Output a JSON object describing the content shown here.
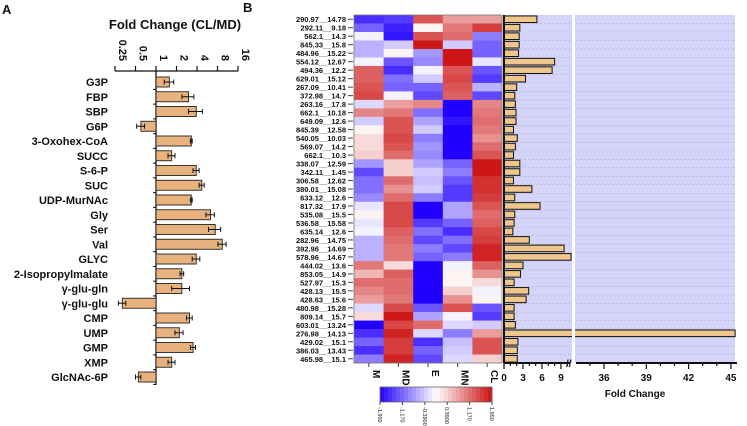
{
  "chart_data": [
    {
      "panel": "A",
      "type": "bar",
      "orientation": "horizontal",
      "title": "Fold Change (CL/MD)",
      "xscale": "log2",
      "xlim": [
        0.25,
        16
      ],
      "xticks": [
        "0.25",
        "0.5",
        "1",
        "2",
        "4",
        "8",
        "16"
      ],
      "categories": [
        "G3P",
        "FBP",
        "SBP",
        "G6P",
        "3-Oxohex-CoA",
        "SUCC",
        "S-6-P",
        "SUC",
        "UDP-MurNAc",
        "Gly",
        "Ser",
        "Val",
        "GLYC",
        "2-Isopropylmalate",
        "γ-glu-gln",
        "γ-glu-glu",
        "CMP",
        "UMP",
        "GMP",
        "XMP",
        "GlcNAc-6P"
      ],
      "values": [
        1.57,
        3.0,
        3.9,
        0.6,
        3.3,
        1.7,
        3.9,
        4.7,
        3.3,
        6.3,
        7.4,
        9.4,
        3.9,
        2.4,
        2.4,
        0.32,
        3.1,
        2.2,
        3.5,
        1.7,
        0.55
      ],
      "errors": [
        0.25,
        0.6,
        0.9,
        0.08,
        0.1,
        0.2,
        0.4,
        0.4,
        0.1,
        0.9,
        1.5,
        1.3,
        0.5,
        0.15,
        0.7,
        0.04,
        0.3,
        0.3,
        0.3,
        0.2,
        0.05
      ],
      "bar_color": "#e8b27e"
    },
    {
      "panel": "B",
      "type": "heatmap",
      "columns": [
        "M",
        "MD",
        "E",
        "MN",
        "CL"
      ],
      "rows": [
        "290.97__14.78",
        "292.11__9.18",
        "562.1__14.3",
        "845.33__15.8",
        "484.96__15.22",
        "554.12__12.67",
        "494.36__12.2",
        "629.01__15.12",
        "267.09__10.41",
        "372.98__14.7",
        "263.16__17.8",
        "662.1__10.18",
        "649.09__12.6",
        "845.39__12.58",
        "540.05__10.03",
        "569.07__14.2",
        "662.1__10.3",
        "338.07__12.59",
        "342.11__1.45",
        "306.58__12.62",
        "380.01__15.08",
        "633.12__12.6",
        "817.32__17.9",
        "535.08__15.5",
        "536.58__15.58",
        "635.14__12.6",
        "282.96__14.75",
        "392.96__14.69",
        "578.96__14.67",
        "444.02__13.6",
        "853.05__14.9",
        "527.97__15.3",
        "428.13__15.5",
        "428.63__15.6",
        "480.98__15.28",
        "809.14__15.7",
        "603.01__13.24",
        "276.98__14.13",
        "429.02__15.1",
        "386.03__13.43",
        "465.98__15.1"
      ],
      "values": [
        [
          -1.6,
          -1.5,
          1.4,
          0.8,
          0.8
        ],
        [
          -1.2,
          -1.7,
          0.1,
          1.1,
          1.6
        ],
        [
          -0.1,
          -1.8,
          1.4,
          1.2,
          -1.0
        ],
        [
          -0.6,
          -0.4,
          1.9,
          -0.4,
          -1.2
        ],
        [
          -0.6,
          0.1,
          -0.8,
          1.9,
          -1.2
        ],
        [
          -0.1,
          -1.3,
          -0.9,
          1.9,
          -0.2
        ],
        [
          1.3,
          -1.6,
          -0.1,
          1.4,
          -1.3
        ],
        [
          1.3,
          -1.1,
          -0.4,
          1.5,
          -1.5
        ],
        [
          1.4,
          -1.2,
          -1.2,
          1.4,
          -0.6
        ],
        [
          1.5,
          -0.1,
          -1.4,
          1.3,
          -1.4
        ],
        [
          -0.3,
          0.8,
          1.0,
          -1.95,
          1.0
        ],
        [
          1.0,
          1.1,
          -1.1,
          -1.95,
          1.1
        ],
        [
          -0.4,
          1.4,
          -0.7,
          -1.8,
          1.2
        ],
        [
          0.1,
          1.4,
          -0.4,
          -1.95,
          1.1
        ],
        [
          0.3,
          1.5,
          -1.0,
          -1.95,
          0.9
        ],
        [
          0.3,
          1.4,
          -0.8,
          -1.95,
          1.2
        ],
        [
          0.4,
          1.2,
          -0.9,
          -1.95,
          1.4
        ],
        [
          -0.8,
          0.4,
          -0.7,
          -1.2,
          1.9
        ],
        [
          -1.4,
          0.4,
          -0.4,
          -1.0,
          1.9
        ],
        [
          -1.1,
          1.2,
          -0.5,
          -1.3,
          1.7
        ],
        [
          -1.1,
          0.9,
          -0.4,
          -1.5,
          1.7
        ],
        [
          -0.9,
          1.2,
          -1.0,
          -1.5,
          1.6
        ],
        [
          -0.2,
          1.5,
          -1.95,
          -0.7,
          1.4
        ],
        [
          0.1,
          1.5,
          -1.95,
          -0.7,
          1.2
        ],
        [
          -0.2,
          1.5,
          -1.5,
          -1.2,
          1.3
        ],
        [
          -0.1,
          1.3,
          -1.1,
          -1.6,
          1.5
        ],
        [
          -0.6,
          1.2,
          -1.4,
          -1.1,
          1.6
        ],
        [
          -0.6,
          1.1,
          -1.0,
          -1.4,
          1.8
        ],
        [
          -0.6,
          1.1,
          -1.2,
          -1.0,
          1.8
        ],
        [
          1.1,
          0.3,
          -1.95,
          -0.1,
          1.3
        ],
        [
          0.6,
          1.3,
          -1.95,
          0.1,
          0.9
        ],
        [
          1.2,
          1.2,
          -1.95,
          0.1,
          0.3
        ],
        [
          1.0,
          1.2,
          -1.95,
          0.4,
          -0.1
        ],
        [
          0.8,
          1.1,
          -1.95,
          0.9,
          0.1
        ],
        [
          -0.3,
          1.5,
          -1.3,
          1.4,
          -1.3
        ],
        [
          0.3,
          1.9,
          -0.7,
          -0.1,
          -1.5
        ],
        [
          -1.95,
          1.5,
          1.2,
          -0.3,
          -0.4
        ],
        [
          -1.6,
          1.8,
          -0.3,
          -1.0,
          0.8
        ],
        [
          -1.2,
          1.6,
          -1.6,
          -0.5,
          1.4
        ],
        [
          -1.6,
          1.6,
          -1.2,
          -0.4,
          1.4
        ],
        [
          -1.0,
          1.8,
          -1.4,
          -0.3,
          0.4
        ]
      ],
      "colorbar": {
        "range": [
          -1.95,
          1.95
        ],
        "ticks": [
          "-1.950",
          "-1.170",
          "-0.3900",
          "0.3900",
          "1.170",
          "1.950"
        ],
        "low_color": "#2200ff",
        "mid_color": "#ffffff",
        "high_color": "#cc1111"
      }
    },
    {
      "panel": "B-bars",
      "type": "bar",
      "orientation": "horizontal",
      "xlabel": "Fold Change",
      "axis_break": [
        10.7,
        34.5
      ],
      "xticks_low": [
        "0",
        "3",
        "6",
        "9"
      ],
      "xticks_high": [
        "36",
        "39",
        "42",
        "45"
      ],
      "values": [
        5.2,
        2.5,
        2.4,
        2.4,
        2.3,
        8.0,
        7.6,
        3.4,
        2.0,
        1.7,
        1.8,
        1.9,
        1.9,
        1.5,
        2.1,
        1.8,
        1.5,
        2.5,
        2.5,
        1.5,
        4.4,
        1.7,
        5.7,
        1.7,
        1.6,
        1.4,
        4.0,
        9.5,
        10.6,
        3.0,
        2.6,
        1.6,
        3.9,
        3.5,
        1.6,
        1.6,
        1.8,
        45.3,
        2.2,
        2.1,
        2.1
      ],
      "bar_color": "#eec68e",
      "background_color": "#d4d4fa"
    }
  ],
  "panel_labels": {
    "a": "A",
    "b": "B"
  }
}
